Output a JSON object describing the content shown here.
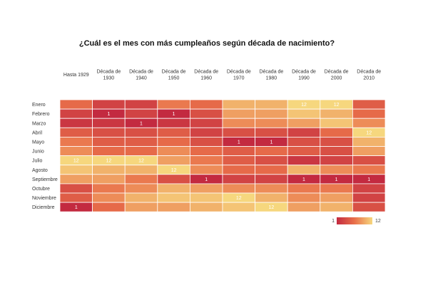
{
  "chart_data": {
    "type": "heatmap",
    "title": "¿Cuál es el mes con más cumpleaños según década de nacimiento?",
    "columns": [
      [
        "Hasta 1929"
      ],
      [
        "Década de",
        "1930"
      ],
      [
        "Década de",
        "1940"
      ],
      [
        "Década de",
        "1950"
      ],
      [
        "Década de",
        "1960"
      ],
      [
        "Década de",
        "1970"
      ],
      [
        "Década de",
        "1980"
      ],
      [
        "Década de",
        "1990"
      ],
      [
        "Década de",
        "2000"
      ],
      [
        "Década de",
        "2010"
      ]
    ],
    "rows": [
      "Enero",
      "Febrero",
      "Marzo",
      "Abril",
      "Mayo",
      "Junio",
      "Julio",
      "Agosto",
      "Septiembre",
      "Octubre",
      "Noviembre",
      "Diciembre"
    ],
    "ranks": [
      [
        6,
        3,
        3,
        7,
        6,
        10,
        10,
        12,
        12,
        5
      ],
      [
        3,
        1,
        3,
        1,
        4,
        9,
        9,
        11,
        10,
        6
      ],
      [
        2,
        2,
        1,
        2,
        3,
        8,
        8,
        9,
        11,
        8
      ],
      [
        5,
        4,
        4,
        5,
        3,
        4,
        4,
        3,
        6,
        12
      ],
      [
        7,
        5,
        5,
        6,
        4,
        1,
        1,
        4,
        4,
        10
      ],
      [
        8,
        6,
        6,
        8,
        6,
        5,
        6,
        5,
        4,
        9
      ],
      [
        12,
        12,
        12,
        9,
        7,
        5,
        4,
        2,
        3,
        4
      ],
      [
        11,
        10,
        10,
        12,
        8,
        6,
        6,
        10,
        8,
        7
      ],
      [
        9,
        9,
        7,
        4,
        1,
        3,
        3,
        1,
        1,
        1
      ],
      [
        4,
        7,
        8,
        10,
        9,
        8,
        8,
        7,
        7,
        3
      ],
      [
        5,
        8,
        10,
        11,
        11,
        12,
        10,
        8,
        9,
        3
      ],
      [
        1,
        6,
        9,
        9,
        10,
        11,
        12,
        9,
        10,
        4
      ]
    ],
    "labeled_values": [
      1,
      12
    ],
    "color_scale": {
      "min": 1,
      "max": 12,
      "min_color": "#c32a40",
      "mid_color": "#e9704a",
      "max_color": "#f6d77e"
    },
    "legend": {
      "min_label": "1",
      "max_label": "12",
      "placement": "bottom-right"
    }
  }
}
